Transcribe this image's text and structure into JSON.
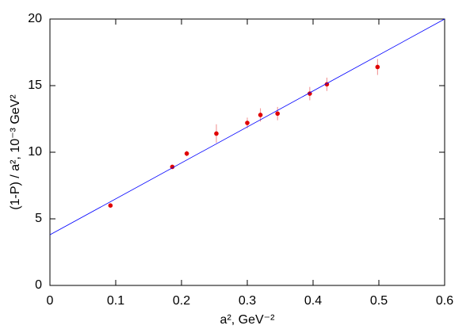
{
  "chart_data": {
    "type": "scatter",
    "xlabel": "a², GeV⁻²",
    "ylabel": "(1-P) / a², 10⁻³ GeV²",
    "xlim": [
      0,
      0.6
    ],
    "xticks": [
      0,
      0.1,
      0.2,
      0.3,
      0.4,
      0.5,
      0.6
    ],
    "ylim": [
      0,
      20
    ],
    "yticks": [
      0,
      5,
      10,
      15,
      20
    ],
    "series": [
      {
        "kind": "points",
        "color": "#e00000",
        "x": [
          0.092,
          0.186,
          0.208,
          0.253,
          0.3,
          0.32,
          0.346,
          0.395,
          0.421,
          0.498
        ],
        "values": [
          6.0,
          8.9,
          9.9,
          11.4,
          12.2,
          12.8,
          12.9,
          14.4,
          15.1,
          16.4
        ],
        "errors": [
          0.1,
          0.15,
          0.2,
          0.7,
          0.4,
          0.5,
          0.5,
          0.5,
          0.5,
          0.6
        ]
      },
      {
        "kind": "line",
        "color": "#0000ff",
        "x": [
          0,
          0.6
        ],
        "values": [
          3.8,
          20
        ]
      }
    ]
  }
}
